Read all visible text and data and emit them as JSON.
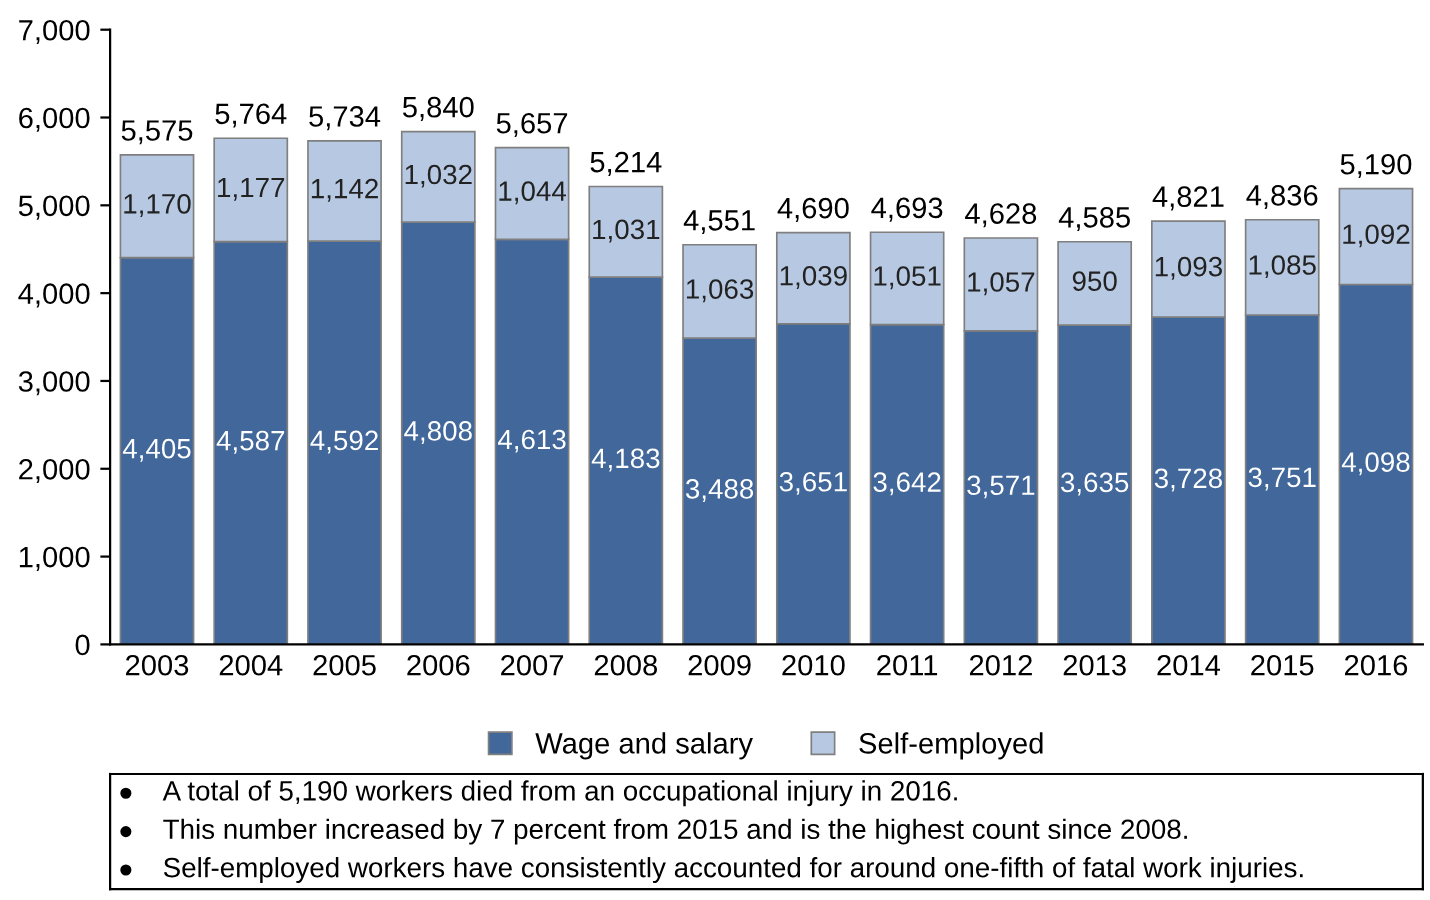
{
  "chart_data": {
    "type": "bar",
    "stacked": true,
    "categories": [
      "2003",
      "2004",
      "2005",
      "2006",
      "2007",
      "2008",
      "2009",
      "2010",
      "2011",
      "2012",
      "2013",
      "2014",
      "2015",
      "2016"
    ],
    "series": [
      {
        "name": "Wage and salary",
        "color": "#41679b",
        "values": [
          4405,
          4587,
          4592,
          4808,
          4613,
          4183,
          3488,
          3651,
          3642,
          3571,
          3635,
          3728,
          3751,
          4098
        ],
        "value_labels": [
          "4,405",
          "4,587",
          "4,592",
          "4,808",
          "4,613",
          "4,183",
          "3,488",
          "3,651",
          "3,642",
          "3,571",
          "3,635",
          "3,728",
          "3,751",
          "4,098"
        ]
      },
      {
        "name": "Self-employed",
        "color": "#b7c9e2",
        "values": [
          1170,
          1177,
          1142,
          1032,
          1044,
          1031,
          1063,
          1039,
          1051,
          1057,
          950,
          1093,
          1085,
          1092
        ],
        "value_labels": [
          "1,170",
          "1,177",
          "1,142",
          "1,032",
          "1,044",
          "1,031",
          "1,063",
          "1,039",
          "1,051",
          "1,057",
          "950",
          "1,093",
          "1,085",
          "1,092"
        ]
      }
    ],
    "totals": [
      "5,575",
      "5,764",
      "5,734",
      "5,840",
      "5,657",
      "5,214",
      "4,551",
      "4,690",
      "4,693",
      "4,628",
      "4,585",
      "4,821",
      "4,836",
      "5,190"
    ],
    "ylim": [
      0,
      7000
    ],
    "yticks": [
      0,
      {
        "value": 1000,
        "label": "1,000"
      },
      {
        "value": 2000,
        "label": "2,000"
      },
      {
        "value": 3000,
        "label": "3,000"
      },
      {
        "value": 4000,
        "label": "4,000"
      },
      {
        "value": 5000,
        "label": "5,000"
      },
      {
        "value": 6000,
        "label": "6,000"
      },
      {
        "value": 7000,
        "label": "7,000"
      }
    ],
    "grid": false,
    "legend": "bottom",
    "annotations": [
      "A total of 5,190 workers died from an occupational injury in 2016.",
      "This number increased by 7 percent from 2015 and is the highest count since 2008.",
      "Self-employed workers have consistently accounted for around one-fifth of fatal work injuries."
    ]
  }
}
